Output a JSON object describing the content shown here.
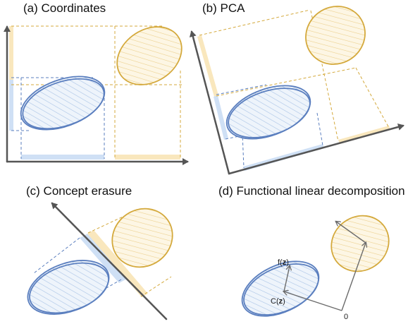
{
  "colors": {
    "blue": "#5b7fbf",
    "blue_fill": "#cfe0f5",
    "gold": "#d4a93c",
    "gold_fill": "#f9e7bd",
    "axis": "#555555"
  },
  "panels": {
    "a": {
      "title": "(a) Coordinates"
    },
    "b": {
      "title": "(b) PCA"
    },
    "c": {
      "title": "(c) Concept erasure"
    },
    "d": {
      "title": "(d) Functional linear decomposition",
      "label_f": "f(",
      "label_c": "C(",
      "label_z": "z",
      "label_close": ")",
      "label_origin": "0"
    }
  }
}
